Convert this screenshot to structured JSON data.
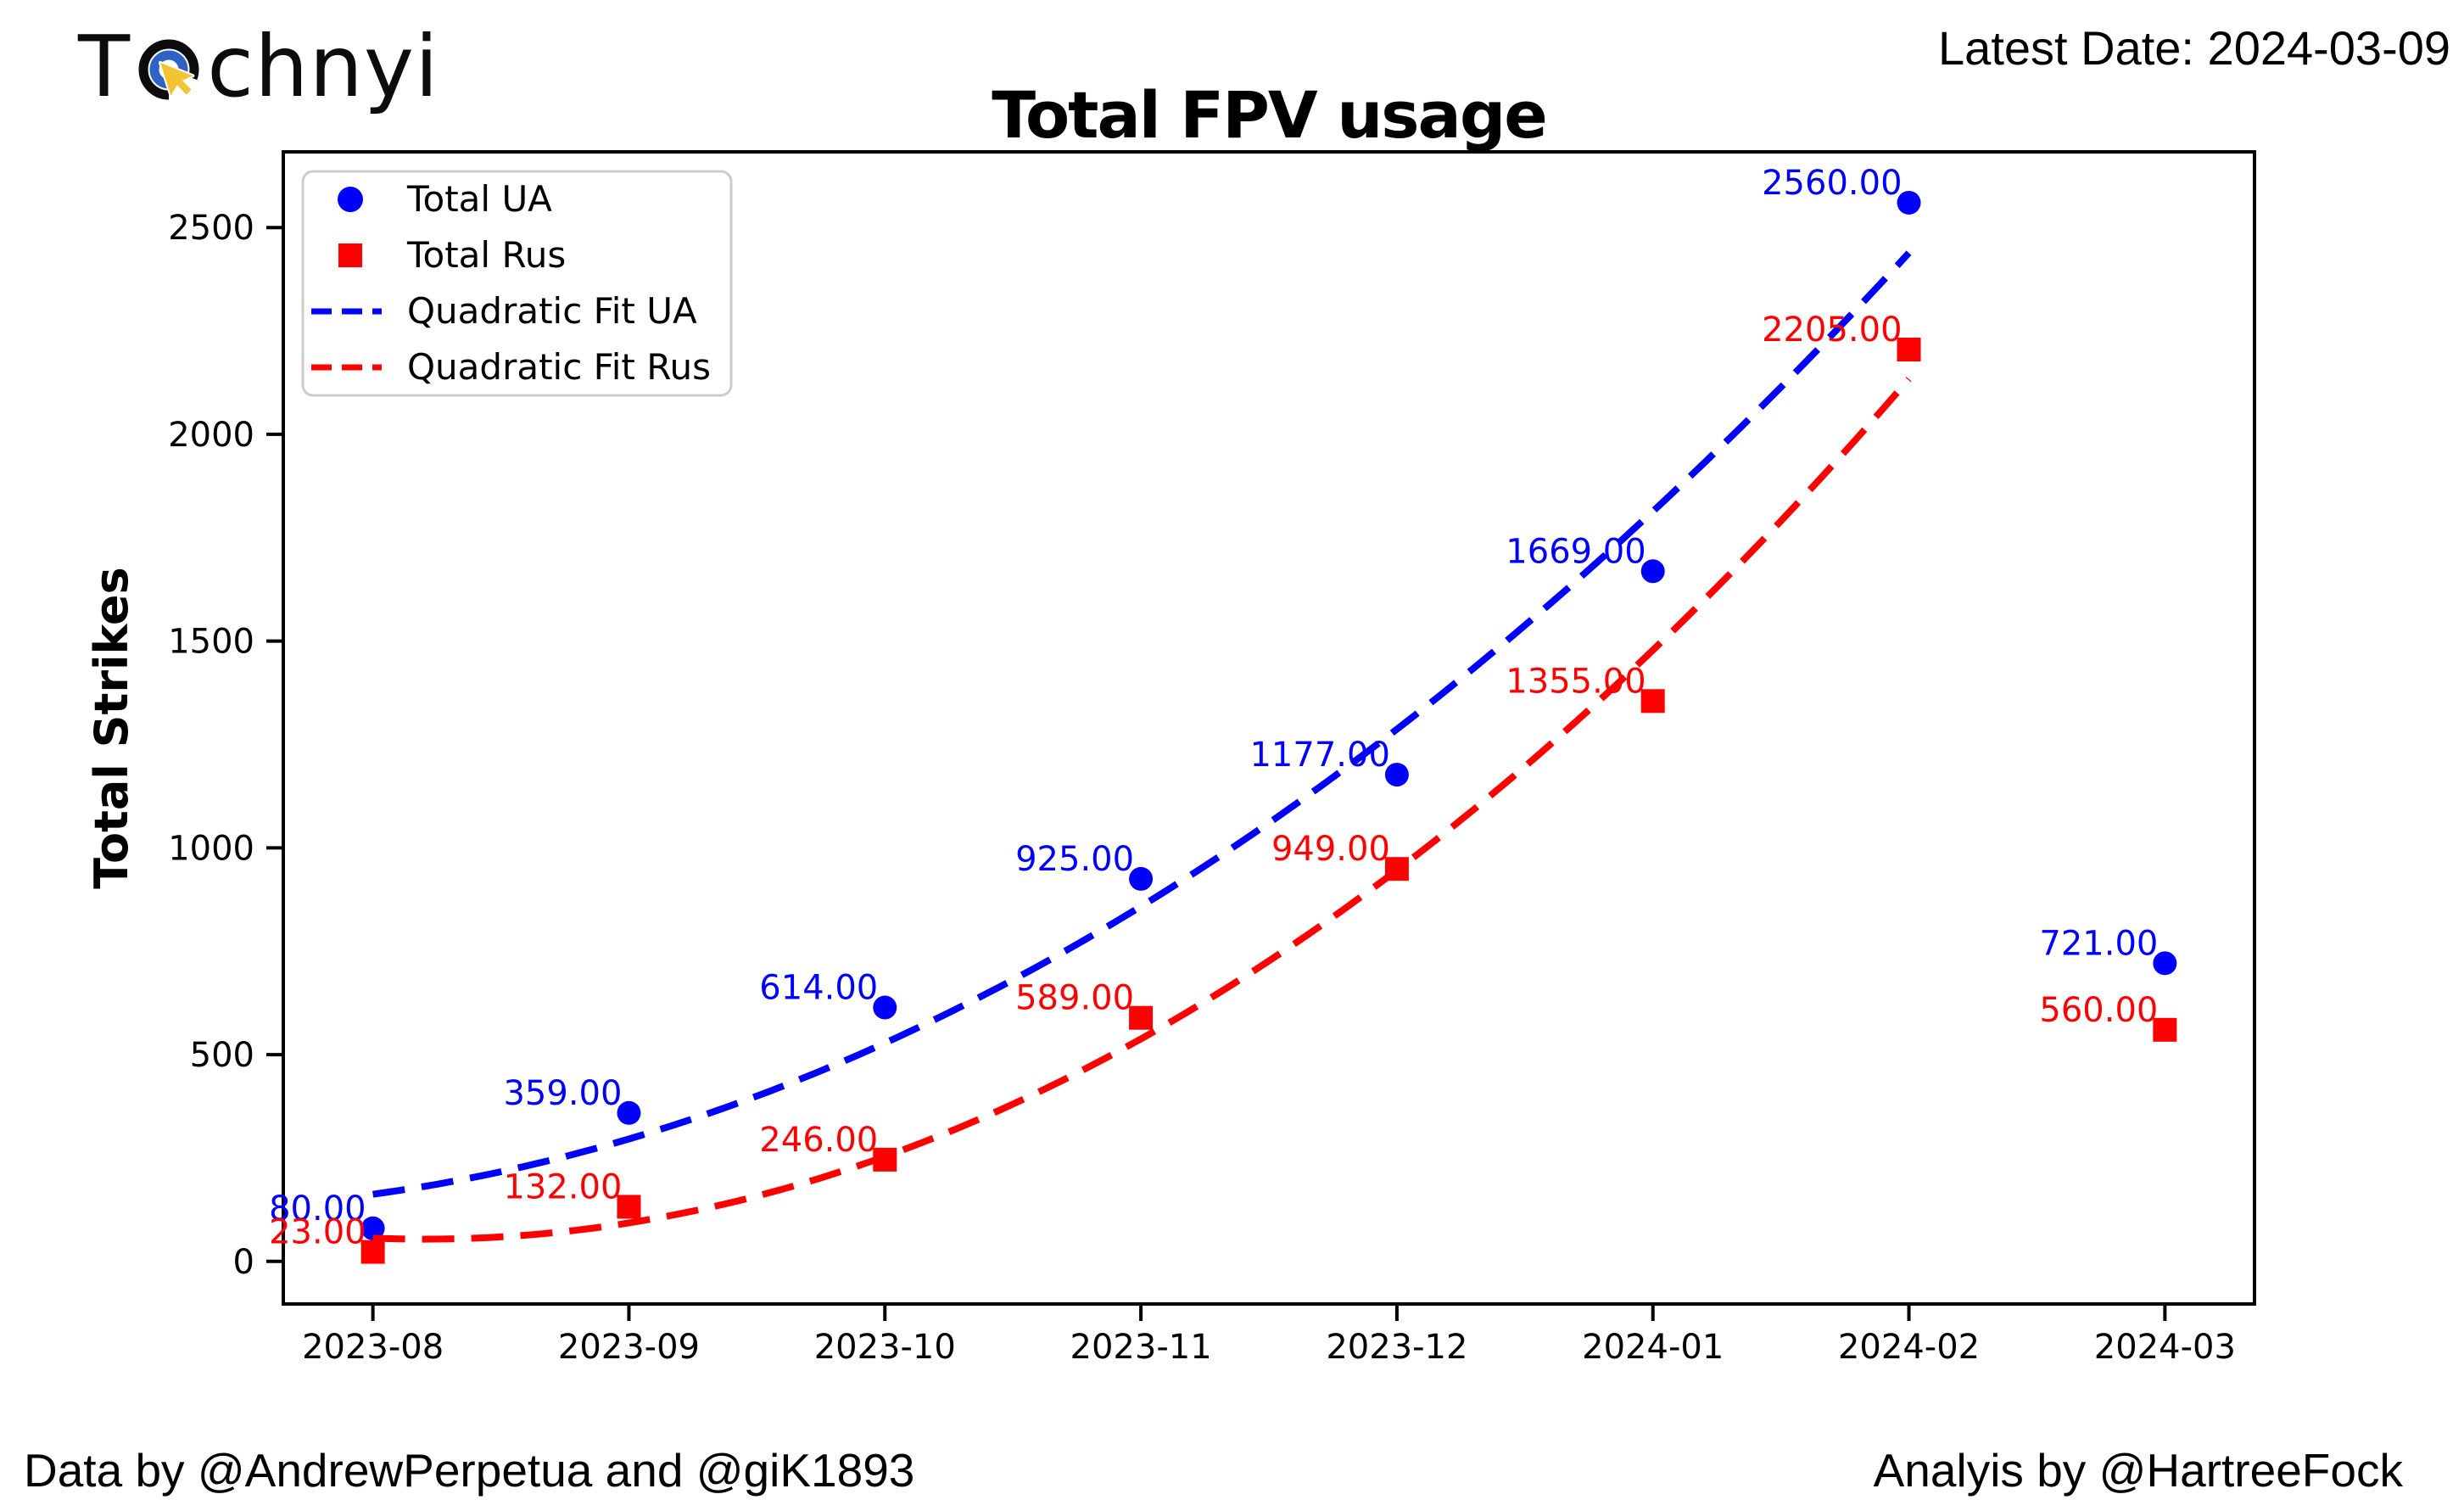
{
  "header": {
    "logo": {
      "prefix": "T",
      "suffix": "chnyi",
      "icon": "target-cursor-icon",
      "icon_colors": {
        "ring": "#0c0c0c",
        "inner_ring": "#2e62c4",
        "cursor": "#f2c432"
      }
    },
    "latest_date": "Latest Date: 2024-03-09"
  },
  "footer": {
    "left": "Data by @AndrewPerpetua and @giK1893",
    "right": "Analyis by @HartreeFock"
  },
  "chart_data": {
    "type": "scatter",
    "title": "Total FPV usage",
    "xlabel": "",
    "ylabel": "Total Strikes",
    "categories": [
      "2023-08",
      "2023-09",
      "2023-10",
      "2023-11",
      "2023-12",
      "2024-01",
      "2024-02",
      "2024-03"
    ],
    "series": [
      {
        "name": "Total UA",
        "marker": "circle",
        "color": "#0000ff",
        "values": [
          80,
          359,
          614,
          925,
          1177,
          1669,
          2560,
          721
        ]
      },
      {
        "name": "Total Rus",
        "marker": "square",
        "color": "#ff0000",
        "values": [
          23,
          132,
          246,
          589,
          949,
          1355,
          2205,
          560
        ]
      }
    ],
    "fit_series": [
      {
        "name": "Quadratic Fit UA",
        "color": "#0000ff",
        "source": 0,
        "month_range": [
          0,
          6
        ],
        "style": "dashed"
      },
      {
        "name": "Quadratic Fit Rus",
        "color": "#ff0000",
        "source": 1,
        "month_range": [
          0,
          6
        ],
        "style": "dashed"
      }
    ],
    "value_label_decimals": 2,
    "yticks": [
      0,
      500,
      1000,
      1500,
      2000,
      2500
    ],
    "ylim": [
      -103,
      2683
    ],
    "xlim": [
      -0.35,
      7.35
    ],
    "grid": false,
    "legend_position": "upper left"
  }
}
